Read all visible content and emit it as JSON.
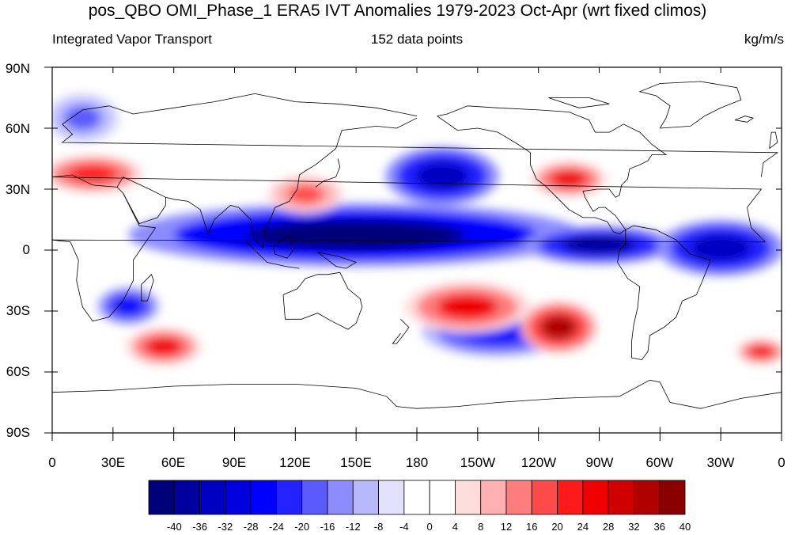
{
  "title": "pos_QBO OMI_Phase_1 ERA5 IVT Anomalies 1979-2023 Oct-Apr (wrt fixed climos)",
  "subtitle_left": "Integrated Vapor Transport",
  "subtitle_center": "152 data points",
  "subtitle_right": "kg/m/s",
  "map": {
    "projection": "cylindrical equidistant",
    "lat_labels": [
      "90N",
      "60N",
      "30N",
      "0",
      "30S",
      "60S",
      "90S"
    ],
    "lon_labels": [
      "0",
      "30E",
      "60E",
      "90E",
      "120E",
      "150E",
      "180",
      "150W",
      "120W",
      "90W",
      "60W",
      "30W",
      "0"
    ]
  },
  "colorbar": {
    "labels": [
      "-40",
      "-36",
      "-32",
      "-28",
      "-24",
      "-20",
      "-16",
      "-12",
      "-8",
      "-4",
      "0",
      "4",
      "8",
      "12",
      "16",
      "20",
      "24",
      "28",
      "32",
      "36",
      "40"
    ],
    "colors": [
      "#00007a",
      "#00009e",
      "#0000c2",
      "#0000de",
      "#0000ff",
      "#2323ff",
      "#5a5aff",
      "#8c8cff",
      "#b8b8ff",
      "#e2e2ff",
      "#ffffff",
      "#ffffff",
      "#ffdcdc",
      "#ffb0b0",
      "#ff7d7d",
      "#ff4a4a",
      "#ff1a1a",
      "#f00000",
      "#d00000",
      "#b00000",
      "#8a0000"
    ]
  },
  "chart_data": {
    "type": "heatmap",
    "variable": "IVT anomaly",
    "units": "kg/m/s",
    "lon_range": [
      0,
      360
    ],
    "lat_range": [
      -90,
      90
    ],
    "features": [
      {
        "lon": [
          60,
          240
        ],
        "lat": [
          -5,
          20
        ],
        "sign": "negative",
        "peak": -40
      },
      {
        "lon": [
          240,
          300
        ],
        "lat": [
          -5,
          10
        ],
        "sign": "negative",
        "peak": -36
      },
      {
        "lon": [
          170,
          215
        ],
        "lat": [
          25,
          48
        ],
        "sign": "negative",
        "peak": -32
      },
      {
        "lon": [
          305,
          355
        ],
        "lat": [
          -10,
          12
        ],
        "sign": "negative",
        "peak": -32
      },
      {
        "lon": [
          190,
          250
        ],
        "lat": [
          -50,
          -30
        ],
        "sign": "negative",
        "peak": -24
      },
      {
        "lon": [
          235,
          265
        ],
        "lat": [
          -48,
          -28
        ],
        "sign": "positive",
        "peak": 36
      },
      {
        "lon": [
          180,
          230
        ],
        "lat": [
          -38,
          -18
        ],
        "sign": "positive",
        "peak": 28
      },
      {
        "lon": [
          240,
          270
        ],
        "lat": [
          28,
          42
        ],
        "sign": "positive",
        "peak": 28
      },
      {
        "lon": [
          340,
          360
        ],
        "lat": [
          -55,
          -45
        ],
        "sign": "positive",
        "peak": 28
      },
      {
        "lon": [
          40,
          70
        ],
        "lat": [
          -55,
          -40
        ],
        "sign": "positive",
        "peak": 28
      },
      {
        "lon": [
          0,
          40
        ],
        "lat": [
          30,
          45
        ],
        "sign": "positive",
        "peak": 24
      },
      {
        "lon": [
          110,
          140
        ],
        "lat": [
          20,
          35
        ],
        "sign": "positive",
        "peak": 20
      },
      {
        "lon": [
          0,
          30
        ],
        "lat": [
          55,
          75
        ],
        "sign": "negative",
        "peak": -16
      },
      {
        "lon": [
          25,
          50
        ],
        "lat": [
          -35,
          -20
        ],
        "sign": "negative",
        "peak": -24
      }
    ]
  }
}
